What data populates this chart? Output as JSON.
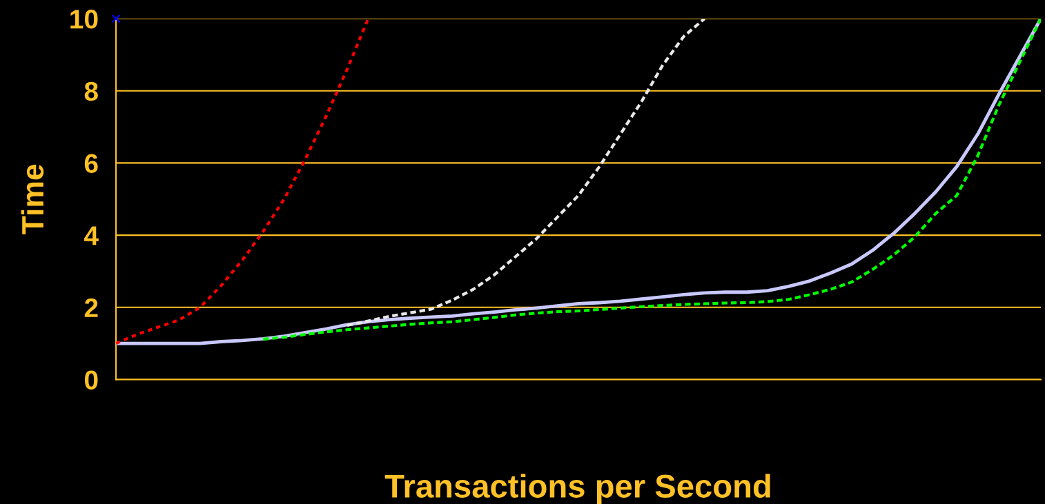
{
  "chart_data": {
    "type": "line",
    "xlabel": "Transactions per Second",
    "ylabel": "Time",
    "categories": [
      null,
      null,
      null,
      null,
      null,
      null,
      null,
      null,
      null,
      null,
      null,
      null,
      null,
      null,
      null,
      null,
      null,
      null,
      null,
      null,
      null,
      null,
      null,
      null,
      null,
      null,
      null,
      null,
      null,
      null,
      null,
      null,
      null,
      null,
      null,
      null,
      null,
      null,
      null,
      null,
      null,
      null,
      null,
      null,
      null
    ],
    "ylim": [
      0,
      10
    ],
    "yticks": [
      0,
      2,
      4,
      6,
      8,
      10
    ],
    "grid": "y",
    "tick_labels": "y",
    "legend": false,
    "series": [
      {
        "color": "#ff0000",
        "line_style": "dotted",
        "values": [
          1.0,
          1.25,
          1.45,
          1.65,
          2.0,
          2.6,
          3.3,
          4.1,
          5.0,
          6.1,
          7.3,
          8.6,
          10.0,
          null,
          null,
          null,
          null,
          null,
          null,
          null,
          null,
          null,
          null,
          null,
          null,
          null,
          null,
          null,
          null,
          null,
          null,
          null,
          null,
          null,
          null,
          null,
          null,
          null,
          null,
          null,
          null,
          null,
          null,
          null,
          null
        ]
      },
      {
        "color": "#e8e8e8",
        "line_style": "dashed",
        "values": [
          null,
          null,
          null,
          null,
          null,
          null,
          null,
          null,
          null,
          null,
          null,
          1.5,
          1.62,
          1.75,
          1.85,
          1.95,
          2.2,
          2.5,
          2.9,
          3.4,
          3.9,
          4.5,
          5.1,
          5.9,
          6.8,
          7.7,
          8.7,
          9.5,
          10.0,
          null,
          null,
          null,
          null,
          null,
          null,
          null,
          null,
          null,
          null,
          null,
          null,
          null,
          null,
          null,
          null
        ]
      },
      {
        "color": "#00ff00",
        "line_style": "dashed",
        "values": [
          null,
          null,
          null,
          null,
          null,
          null,
          null,
          1.12,
          1.17,
          1.25,
          1.32,
          1.38,
          1.43,
          1.48,
          1.53,
          1.57,
          1.6,
          1.66,
          1.72,
          1.79,
          1.84,
          1.88,
          1.9,
          1.94,
          1.98,
          2.02,
          2.05,
          2.08,
          2.1,
          2.12,
          2.13,
          2.16,
          2.22,
          2.35,
          2.5,
          2.7,
          3.05,
          3.45,
          3.95,
          4.6,
          5.1,
          6.2,
          7.6,
          8.8,
          10.0
        ]
      },
      {
        "color": "#c8c8ff",
        "line_style": "solid",
        "values": [
          1.0,
          1.0,
          1.0,
          1.0,
          1.0,
          1.05,
          1.08,
          1.13,
          1.2,
          1.3,
          1.4,
          1.52,
          1.6,
          1.66,
          1.7,
          1.73,
          1.76,
          1.82,
          1.87,
          1.93,
          1.98,
          2.04,
          2.1,
          2.13,
          2.17,
          2.23,
          2.29,
          2.35,
          2.4,
          2.42,
          2.42,
          2.46,
          2.58,
          2.73,
          2.95,
          3.2,
          3.58,
          4.05,
          4.6,
          5.2,
          5.9,
          6.8,
          7.9,
          8.95,
          10.0
        ]
      },
      {
        "color": "#0000ff",
        "type": "scatter",
        "marker": "cross",
        "values": [
          10.0,
          null,
          null,
          null,
          null,
          null,
          null,
          null,
          null,
          null,
          null,
          null,
          null,
          null,
          null,
          null,
          null,
          null,
          null,
          null,
          null,
          null,
          null,
          null,
          null,
          null,
          null,
          null,
          null,
          null,
          null,
          null,
          null,
          null,
          null,
          null,
          null,
          null,
          null,
          null,
          null,
          null,
          null,
          null,
          null
        ]
      }
    ]
  }
}
